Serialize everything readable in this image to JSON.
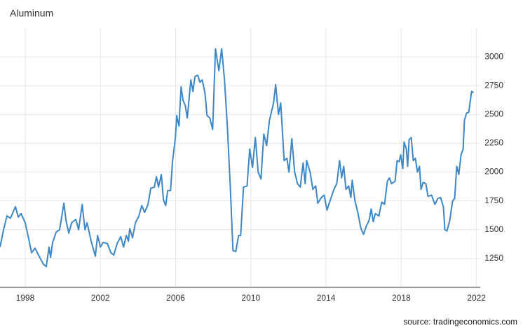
{
  "chart_data": {
    "type": "line",
    "title": "Aluminum",
    "source": "source: tradingeconomics.com",
    "x": [
      1996.66,
      1996.85,
      1997.03,
      1997.22,
      1997.48,
      1997.63,
      1997.78,
      1998.0,
      1998.15,
      1998.34,
      1998.52,
      1998.71,
      1998.97,
      1999.12,
      1999.27,
      1999.35,
      1999.46,
      1999.65,
      1999.83,
      2000.06,
      2000.17,
      2000.32,
      2000.47,
      2000.69,
      2000.84,
      2001.03,
      2001.18,
      2001.29,
      2001.51,
      2001.73,
      2001.85,
      2002.0,
      2002.14,
      2002.37,
      2002.56,
      2002.71,
      2002.89,
      2003.08,
      2003.23,
      2003.38,
      2003.49,
      2003.56,
      2003.71,
      2003.86,
      2004.05,
      2004.2,
      2004.35,
      2004.53,
      2004.68,
      2004.87,
      2004.98,
      2005.09,
      2005.24,
      2005.35,
      2005.47,
      2005.58,
      2005.73,
      2005.84,
      2005.99,
      2006.06,
      2006.18,
      2006.29,
      2006.4,
      2006.51,
      2006.62,
      2006.81,
      2006.92,
      2007.03,
      2007.18,
      2007.29,
      2007.41,
      2007.56,
      2007.67,
      2007.82,
      2007.97,
      2008.12,
      2008.3,
      2008.45,
      2008.6,
      2008.75,
      2008.9,
      2009.05,
      2009.2,
      2009.35,
      2009.46,
      2009.61,
      2009.8,
      2009.94,
      2010.09,
      2010.24,
      2010.39,
      2010.54,
      2010.69,
      2010.84,
      2010.99,
      2011.21,
      2011.32,
      2011.47,
      2011.59,
      2011.77,
      2011.92,
      2012.03,
      2012.18,
      2012.33,
      2012.48,
      2012.63,
      2012.78,
      2012.89,
      2012.97,
      2013.15,
      2013.3,
      2013.45,
      2013.56,
      2013.75,
      2013.9,
      2014.05,
      2014.23,
      2014.42,
      2014.57,
      2014.72,
      2014.83,
      2014.94,
      2015.06,
      2015.2,
      2015.32,
      2015.39,
      2015.54,
      2015.69,
      2015.84,
      2015.99,
      2016.14,
      2016.29,
      2016.4,
      2016.51,
      2016.62,
      2016.81,
      2016.96,
      2017.11,
      2017.26,
      2017.37,
      2017.48,
      2017.67,
      2017.78,
      2017.89,
      2017.97,
      2018.08,
      2018.15,
      2018.27,
      2018.34,
      2018.42,
      2018.53,
      2018.64,
      2018.75,
      2018.86,
      2018.97,
      2019.05,
      2019.16,
      2019.31,
      2019.42,
      2019.61,
      2019.79,
      2019.94,
      2020.09,
      2020.24,
      2020.32,
      2020.43,
      2020.58,
      2020.73,
      2020.84,
      2020.95,
      2021.06,
      2021.18,
      2021.29,
      2021.36,
      2021.47,
      2021.59,
      2021.74,
      2021.85
    ],
    "series": [
      {
        "name": "Aluminum",
        "color": "#3d87c6",
        "values": [
          1350,
          1500,
          1620,
          1600,
          1700,
          1610,
          1640,
          1560,
          1450,
          1300,
          1340,
          1280,
          1200,
          1180,
          1350,
          1260,
          1390,
          1480,
          1500,
          1730,
          1580,
          1470,
          1560,
          1590,
          1500,
          1720,
          1500,
          1560,
          1400,
          1270,
          1450,
          1350,
          1390,
          1380,
          1300,
          1280,
          1380,
          1440,
          1350,
          1450,
          1400,
          1510,
          1430,
          1560,
          1620,
          1710,
          1650,
          1720,
          1860,
          1870,
          1960,
          1870,
          1980,
          1760,
          1710,
          1840,
          1840,
          2100,
          2300,
          2490,
          2400,
          2740,
          2620,
          2580,
          2470,
          2800,
          2700,
          2830,
          2840,
          2780,
          2800,
          2690,
          2490,
          2470,
          2370,
          3070,
          2880,
          3070,
          2800,
          2400,
          1900,
          1320,
          1310,
          1450,
          1450,
          1870,
          1880,
          2200,
          2040,
          2300,
          2000,
          1940,
          2330,
          2230,
          2450,
          2600,
          2760,
          2500,
          2600,
          2100,
          2120,
          2000,
          2290,
          2000,
          1900,
          1870,
          2080,
          1900,
          2100,
          2000,
          1850,
          1880,
          1730,
          1780,
          1800,
          1670,
          1760,
          1850,
          1900,
          2100,
          1950,
          2050,
          1850,
          1880,
          1780,
          1930,
          1750,
          1650,
          1520,
          1460,
          1530,
          1580,
          1680,
          1570,
          1640,
          1620,
          1740,
          1720,
          1920,
          1950,
          1900,
          1920,
          2100,
          2090,
          2150,
          2030,
          2260,
          2200,
          2050,
          2280,
          2300,
          2100,
          2120,
          2000,
          2050,
          1850,
          1910,
          1900,
          1790,
          1800,
          1720,
          1770,
          1780,
          1700,
          1500,
          1490,
          1580,
          1750,
          1770,
          2050,
          1980,
          2150,
          2200,
          2450,
          2510,
          2520,
          2700,
          2690
        ]
      }
    ],
    "xlim": [
      1996.66,
      2022.2
    ],
    "xticks": [
      1998,
      2002,
      2006,
      2010,
      2014,
      2018,
      2022
    ],
    "ylim": [
      1000,
      3250
    ],
    "yticks": [
      1250,
      1500,
      1750,
      2000,
      2250,
      2500,
      2750,
      3000
    ],
    "grid": true
  }
}
